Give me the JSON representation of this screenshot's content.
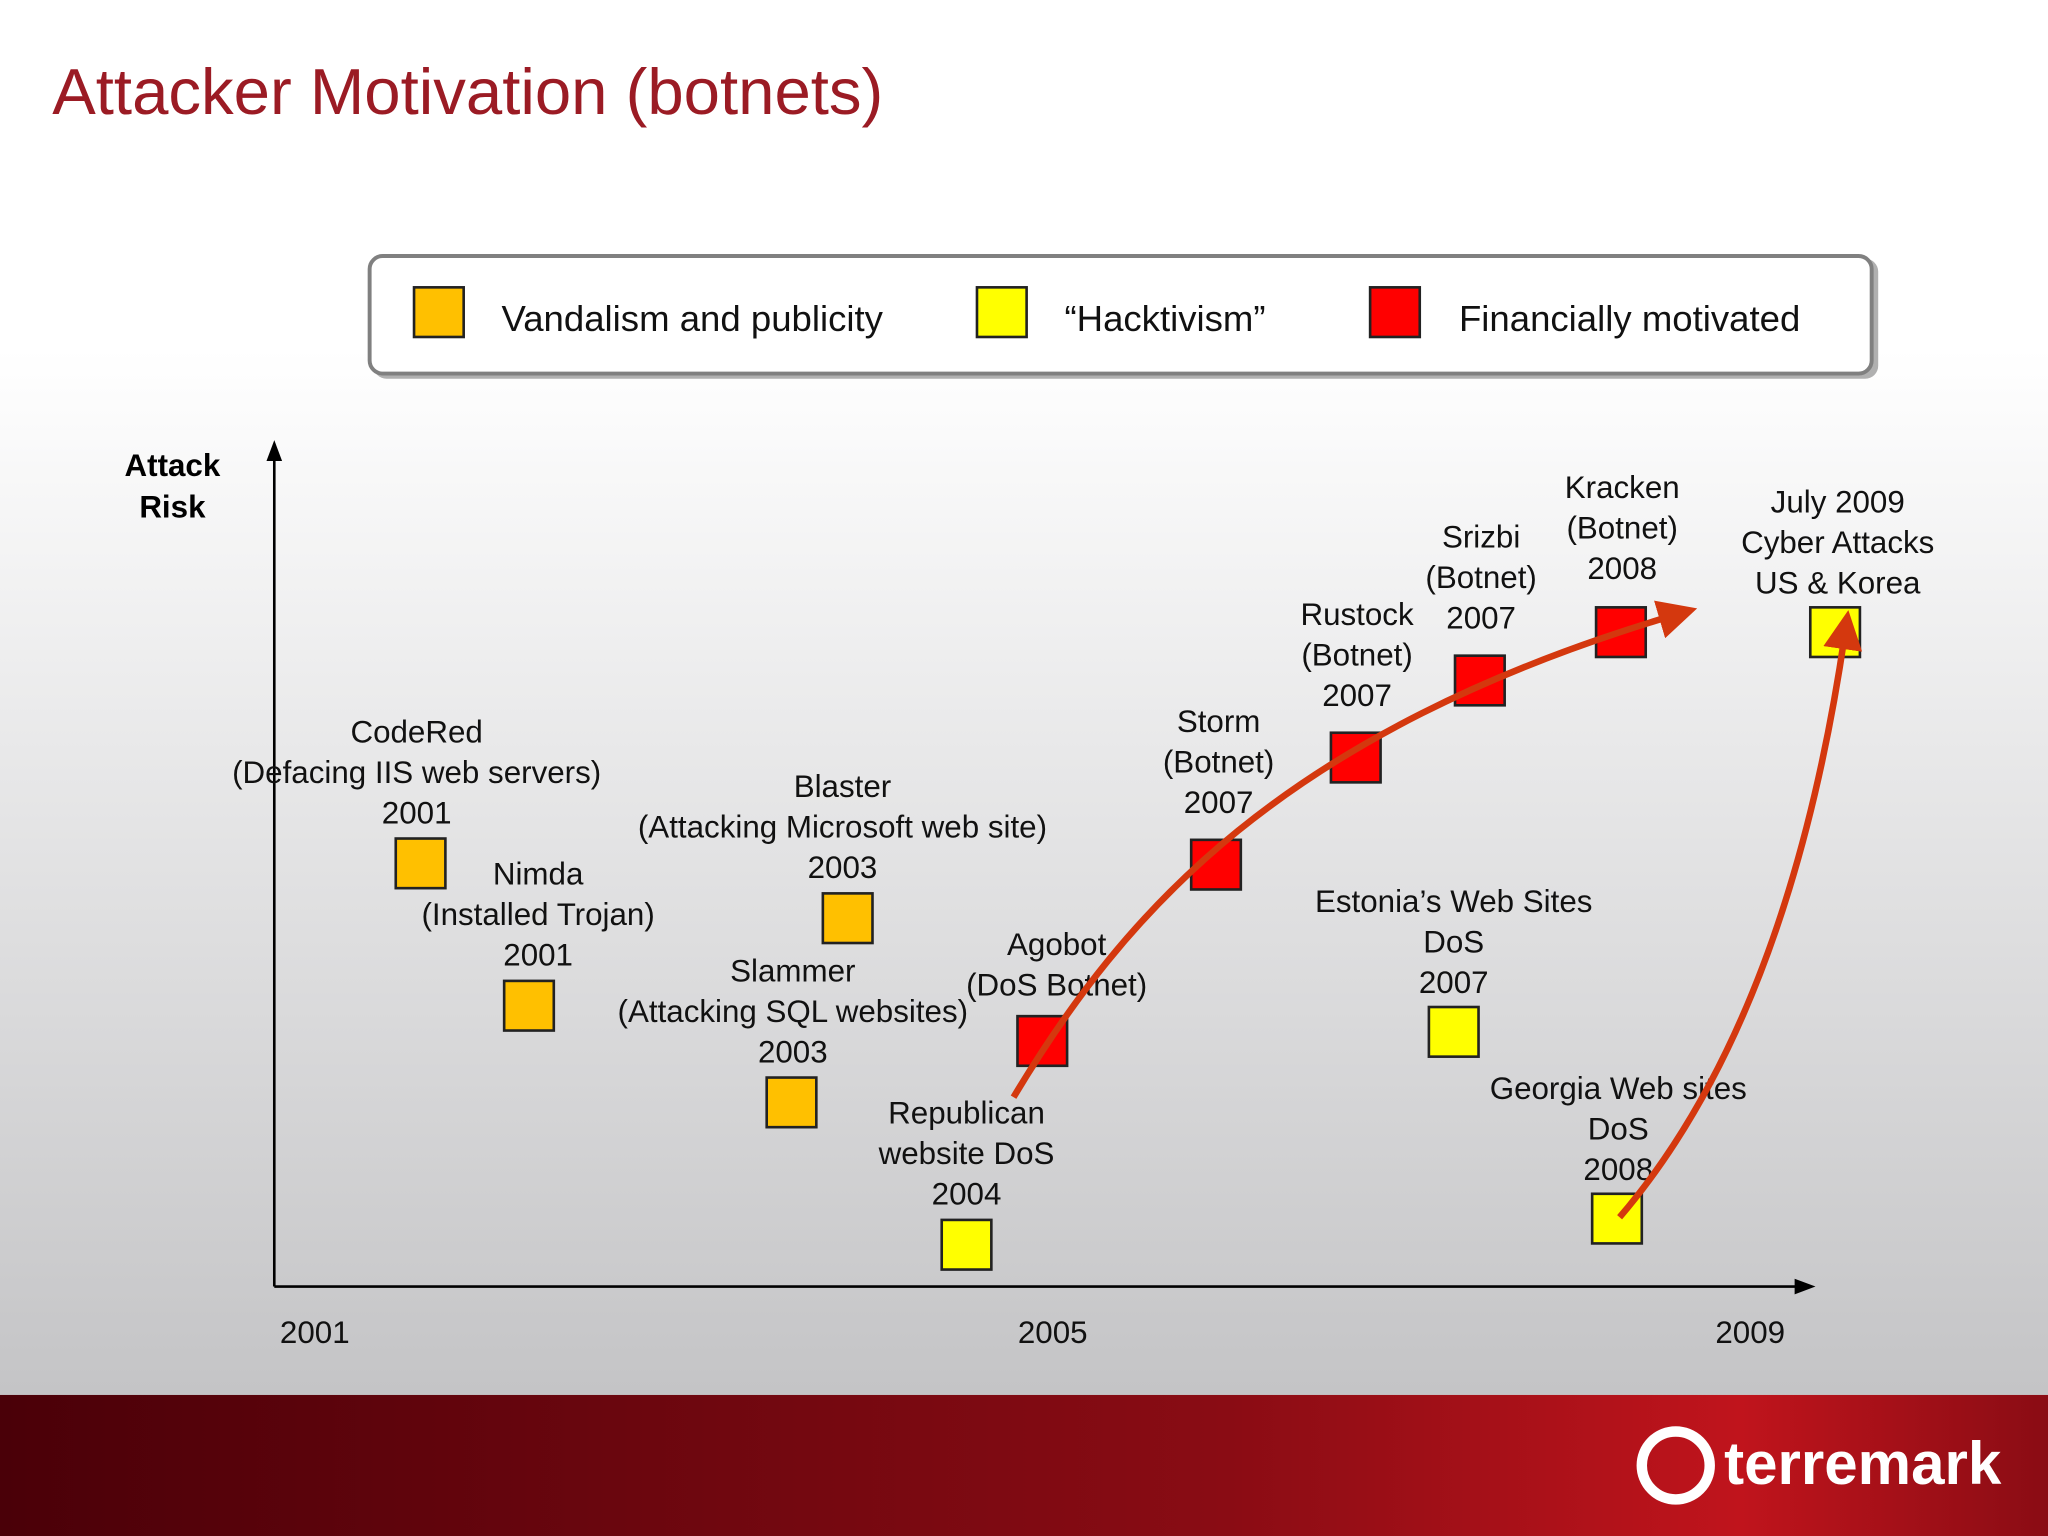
{
  "header": {
    "title": "Attacker Motivation (botnets)"
  },
  "legend": [
    {
      "label": "Vandalism and publicity",
      "color": "#ffc000"
    },
    {
      "label": "“Hacktivism”",
      "color": "#ffff00"
    },
    {
      "label": "Financially motivated",
      "color": "#ff0000"
    }
  ],
  "axis": {
    "y_label": [
      "Attack",
      "Risk"
    ],
    "x_labels": [
      "2001",
      "2005",
      "2009"
    ]
  },
  "nodes": [
    {
      "lines": [
        "CodeRed",
        "(Defacing IIS web servers)",
        "2001"
      ],
      "category": 0
    },
    {
      "lines": [
        "Nimda",
        "(Installed Trojan)",
        "2001"
      ],
      "category": 0
    },
    {
      "lines": [
        "Blaster",
        "(Attacking Microsoft web site)",
        "2003"
      ],
      "category": 0
    },
    {
      "lines": [
        "Slammer",
        "(Attacking SQL websites)",
        "2003"
      ],
      "category": 0
    },
    {
      "lines": [
        "Republican",
        "website DoS",
        "2004"
      ],
      "category": 1
    },
    {
      "lines": [
        "Agobot",
        "(DoS Botnet)"
      ],
      "category": 2
    },
    {
      "lines": [
        "Storm",
        "(Botnet)",
        "2007"
      ],
      "category": 2
    },
    {
      "lines": [
        "Rustock",
        "(Botnet)",
        "2007"
      ],
      "category": 2
    },
    {
      "lines": [
        "Srizbi",
        "(Botnet)",
        "2007"
      ],
      "category": 2
    },
    {
      "lines": [
        "Kracken",
        "(Botnet)",
        "2008"
      ],
      "category": 2
    },
    {
      "lines": [
        "Estonia’s Web Sites",
        "DoS",
        "2007"
      ],
      "category": 1
    },
    {
      "lines": [
        "Georgia Web sites",
        "DoS",
        "2008"
      ],
      "category": 1
    },
    {
      "lines": [
        "July 2009",
        "Cyber Attacks",
        "US & Korea"
      ],
      "category": 1
    }
  ],
  "footer": {
    "logo": "terremark"
  }
}
